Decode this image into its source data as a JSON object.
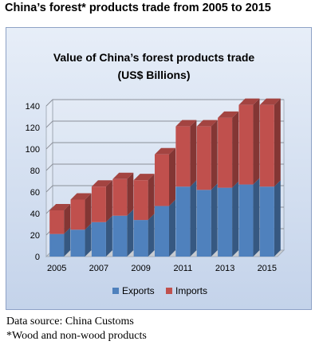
{
  "page_title": "China’s forest* products trade from 2005 to 2015",
  "footnotes": {
    "source": "Data source: China Customs",
    "asterisk": "*Wood and non-wood products"
  },
  "chart_data": {
    "type": "bar",
    "stacked": true,
    "title_lines": [
      "Value of China’s forest products trade",
      "(US$ Billions)"
    ],
    "x": [
      2005,
      2006,
      2007,
      2008,
      2009,
      2010,
      2011,
      2012,
      2013,
      2014,
      2015
    ],
    "x_tick_labels": [
      "2005",
      "",
      "2007",
      "",
      "2009",
      "",
      "2011",
      "",
      "2013",
      "",
      "2015"
    ],
    "series": [
      {
        "name": "Exports",
        "color": "#4f81bd",
        "values": [
          21,
          25,
          32,
          38,
          34,
          47,
          65,
          62,
          64,
          67,
          65
        ]
      },
      {
        "name": "Imports",
        "color": "#c0504d",
        "values": [
          22,
          28,
          33,
          34,
          37,
          48,
          56,
          59,
          65,
          74,
          76
        ]
      }
    ],
    "ylim": [
      0,
      140
    ],
    "y_ticks": [
      0,
      20,
      40,
      60,
      80,
      100,
      120,
      140
    ],
    "grid": true,
    "legend_position": "bottom"
  }
}
